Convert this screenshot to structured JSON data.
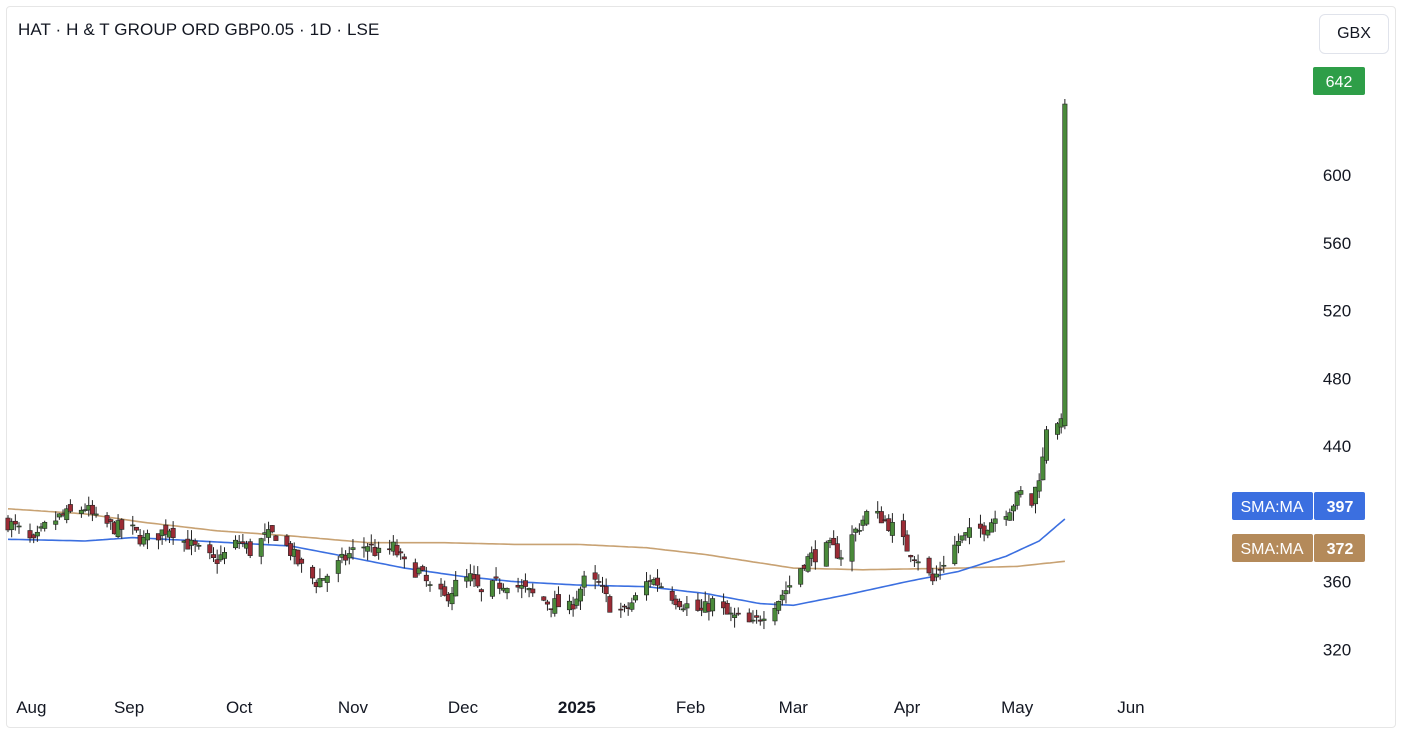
{
  "header": {
    "title": "HAT · H & T GROUP ORD GBP0.05 · 1D · LSE",
    "currency": "GBX"
  },
  "colors": {
    "up": "#26a69a",
    "down": "#ef5350",
    "candle_body_up": "#4a8a3a",
    "candle_body_down": "#9b2b35",
    "wick": "#222222",
    "sma_fast": "#3b6fe0",
    "sma_slow": "#c8a273",
    "last_price_tag": "#2e9e48"
  },
  "tags": {
    "last_price": "642",
    "sma_fast_label": "SMA:MA",
    "sma_fast_value": "397",
    "sma_slow_label": "SMA:MA",
    "sma_slow_value": "372"
  },
  "chart_data": {
    "type": "candlestick",
    "title": "HAT · H & T GROUP ORD GBP0.05 · 1D · LSE",
    "y_ticks": [
      "320",
      "360",
      "440",
      "480",
      "520",
      "560",
      "600"
    ],
    "ylim": [
      296,
      668
    ],
    "x_ticks": [
      {
        "label": "Aug",
        "date": "2024-08-01"
      },
      {
        "label": "Sep",
        "date": "2024-09-01"
      },
      {
        "label": "Oct",
        "date": "2024-10-01"
      },
      {
        "label": "Nov",
        "date": "2024-11-01"
      },
      {
        "label": "Dec",
        "date": "2024-12-01"
      },
      {
        "label": "2025",
        "date": "2025-01-01",
        "bold": true
      },
      {
        "label": "Feb",
        "date": "2025-02-01"
      },
      {
        "label": "Mar",
        "date": "2025-03-01"
      },
      {
        "label": "Apr",
        "date": "2025-04-01"
      },
      {
        "label": "May",
        "date": "2025-05-01"
      },
      {
        "label": "Jun",
        "date": "2025-06-01"
      }
    ],
    "xlim": [
      "2024-07-30",
      "2025-06-28"
    ],
    "price_anchors": [
      [
        "2024-07-30",
        395
      ],
      [
        "2024-08-02",
        390
      ],
      [
        "2024-08-06",
        382
      ],
      [
        "2024-08-09",
        392
      ],
      [
        "2024-08-13",
        398
      ],
      [
        "2024-08-16",
        400
      ],
      [
        "2024-08-20",
        404
      ],
      [
        "2024-08-23",
        396
      ],
      [
        "2024-08-28",
        392
      ],
      [
        "2024-09-02",
        390
      ],
      [
        "2024-09-05",
        384
      ],
      [
        "2024-09-09",
        388
      ],
      [
        "2024-09-12",
        392
      ],
      [
        "2024-09-16",
        384
      ],
      [
        "2024-09-20",
        378
      ],
      [
        "2024-09-24",
        372
      ],
      [
        "2024-09-27",
        376
      ],
      [
        "2024-10-01",
        384
      ],
      [
        "2024-10-04",
        378
      ],
      [
        "2024-10-08",
        386
      ],
      [
        "2024-10-11",
        388
      ],
      [
        "2024-10-15",
        378
      ],
      [
        "2024-10-18",
        368
      ],
      [
        "2024-10-22",
        360
      ],
      [
        "2024-10-25",
        364
      ],
      [
        "2024-10-29",
        372
      ],
      [
        "2024-11-01",
        378
      ],
      [
        "2024-11-05",
        382
      ],
      [
        "2024-11-08",
        376
      ],
      [
        "2024-11-12",
        380
      ],
      [
        "2024-11-15",
        370
      ],
      [
        "2024-11-19",
        366
      ],
      [
        "2024-11-22",
        356
      ],
      [
        "2024-11-26",
        350
      ],
      [
        "2024-11-29",
        358
      ],
      [
        "2024-12-03",
        362
      ],
      [
        "2024-12-06",
        352
      ],
      [
        "2024-12-10",
        358
      ],
      [
        "2024-12-13",
        360
      ],
      [
        "2024-12-17",
        356
      ],
      [
        "2024-12-20",
        352
      ],
      [
        "2024-12-24",
        348
      ],
      [
        "2024-12-30",
        344
      ],
      [
        "2025-01-03",
        360
      ],
      [
        "2025-01-07",
        358
      ],
      [
        "2025-01-10",
        346
      ],
      [
        "2025-01-14",
        342
      ],
      [
        "2025-01-17",
        350
      ],
      [
        "2025-01-21",
        362
      ],
      [
        "2025-01-24",
        358
      ],
      [
        "2025-01-28",
        350
      ],
      [
        "2025-01-31",
        346
      ],
      [
        "2025-02-04",
        342
      ],
      [
        "2025-02-07",
        348
      ],
      [
        "2025-02-11",
        340
      ],
      [
        "2025-02-14",
        338
      ],
      [
        "2025-02-18",
        334
      ],
      [
        "2025-02-21",
        342
      ],
      [
        "2025-02-25",
        350
      ],
      [
        "2025-02-28",
        358
      ],
      [
        "2025-03-04",
        372
      ],
      [
        "2025-03-07",
        376
      ],
      [
        "2025-03-11",
        380
      ],
      [
        "2025-03-14",
        376
      ],
      [
        "2025-03-18",
        390
      ],
      [
        "2025-03-21",
        400
      ],
      [
        "2025-03-25",
        398
      ],
      [
        "2025-03-28",
        392
      ],
      [
        "2025-04-01",
        380
      ],
      [
        "2025-04-04",
        374
      ],
      [
        "2025-04-08",
        360
      ],
      [
        "2025-04-11",
        372
      ],
      [
        "2025-04-15",
        384
      ],
      [
        "2025-04-18",
        388
      ],
      [
        "2025-04-22",
        392
      ],
      [
        "2025-04-25",
        398
      ],
      [
        "2025-04-29",
        404
      ],
      [
        "2025-05-02",
        412
      ],
      [
        "2025-05-05",
        406
      ],
      [
        "2025-05-08",
        432
      ],
      [
        "2025-05-09",
        452
      ],
      [
        "2025-05-12",
        456
      ],
      [
        "2025-05-13",
        452
      ],
      [
        "2025-05-14",
        642
      ]
    ],
    "series": [
      {
        "type": "sma",
        "color": "fast",
        "label": "SMA:MA",
        "last": 397,
        "points": [
          [
            "2024-07-30",
            385
          ],
          [
            "2024-08-20",
            384
          ],
          [
            "2024-09-02",
            386
          ],
          [
            "2024-09-20",
            384
          ],
          [
            "2024-10-15",
            381
          ],
          [
            "2024-11-01",
            374
          ],
          [
            "2024-11-15",
            368
          ],
          [
            "2024-12-01",
            363
          ],
          [
            "2024-12-15",
            360
          ],
          [
            "2025-01-01",
            358
          ],
          [
            "2025-01-20",
            357
          ],
          [
            "2025-02-05",
            353
          ],
          [
            "2025-02-20",
            347
          ],
          [
            "2025-03-01",
            346
          ],
          [
            "2025-03-15",
            352
          ],
          [
            "2025-04-01",
            360
          ],
          [
            "2025-04-15",
            366
          ],
          [
            "2025-04-28",
            375
          ],
          [
            "2025-05-07",
            384
          ],
          [
            "2025-05-14",
            397
          ]
        ]
      },
      {
        "type": "sma",
        "color": "slow",
        "label": "SMA:MA",
        "last": 372,
        "points": [
          [
            "2024-07-30",
            403
          ],
          [
            "2024-08-20",
            400
          ],
          [
            "2024-09-05",
            395
          ],
          [
            "2024-09-25",
            390
          ],
          [
            "2024-10-15",
            387
          ],
          [
            "2024-11-05",
            383
          ],
          [
            "2024-11-25",
            383
          ],
          [
            "2024-12-15",
            382
          ],
          [
            "2025-01-01",
            382
          ],
          [
            "2025-01-20",
            380
          ],
          [
            "2025-02-05",
            376
          ],
          [
            "2025-02-20",
            371
          ],
          [
            "2025-03-01",
            368
          ],
          [
            "2025-03-20",
            367
          ],
          [
            "2025-04-15",
            368
          ],
          [
            "2025-05-01",
            369
          ],
          [
            "2025-05-14",
            372
          ]
        ]
      }
    ],
    "last_price": 642
  }
}
